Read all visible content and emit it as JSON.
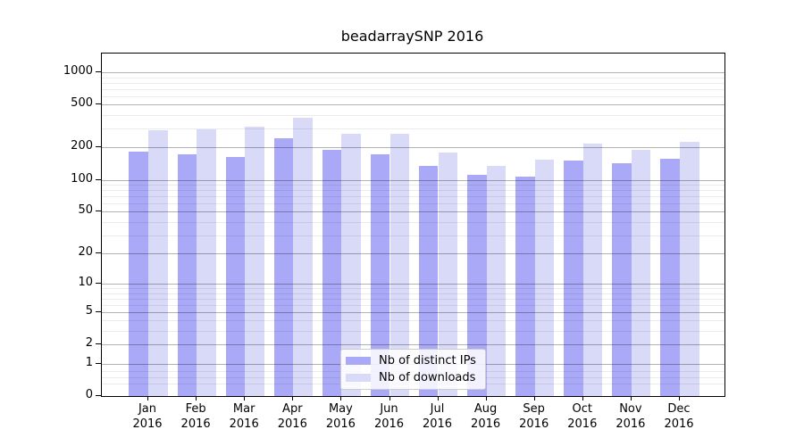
{
  "chart_data": {
    "type": "bar",
    "title": "beadarraySNP 2016",
    "categories": [
      "Jan 2016",
      "Feb 2016",
      "Mar 2016",
      "Apr 2016",
      "May 2016",
      "Jun 2016",
      "Jul 2016",
      "Aug 2016",
      "Sep 2016",
      "Oct 2016",
      "Nov 2016",
      "Dec 2016"
    ],
    "series": [
      {
        "name": "Nb of distinct IPs",
        "color": "#a9a9f8",
        "values": [
          182,
          172,
          163,
          242,
          192,
          174,
          136,
          111,
          107,
          150,
          144,
          156
        ]
      },
      {
        "name": "Nb of downloads",
        "color": "#d9d9f8",
        "values": [
          289,
          295,
          310,
          378,
          270,
          266,
          180,
          134,
          153,
          217,
          189,
          227
        ]
      }
    ],
    "yscale": "log1p",
    "yticks": [
      0,
      1,
      2,
      5,
      10,
      20,
      50,
      100,
      200,
      500,
      1000
    ],
    "minor_yticks": [
      0.3,
      0.5,
      0.7,
      3,
      4,
      6,
      7,
      8,
      9,
      30,
      40,
      60,
      70,
      80,
      90,
      300,
      400,
      600,
      700,
      800,
      900
    ],
    "ylim": [
      0,
      1491
    ],
    "grid": true,
    "legend_position": "inside bottom-center"
  }
}
